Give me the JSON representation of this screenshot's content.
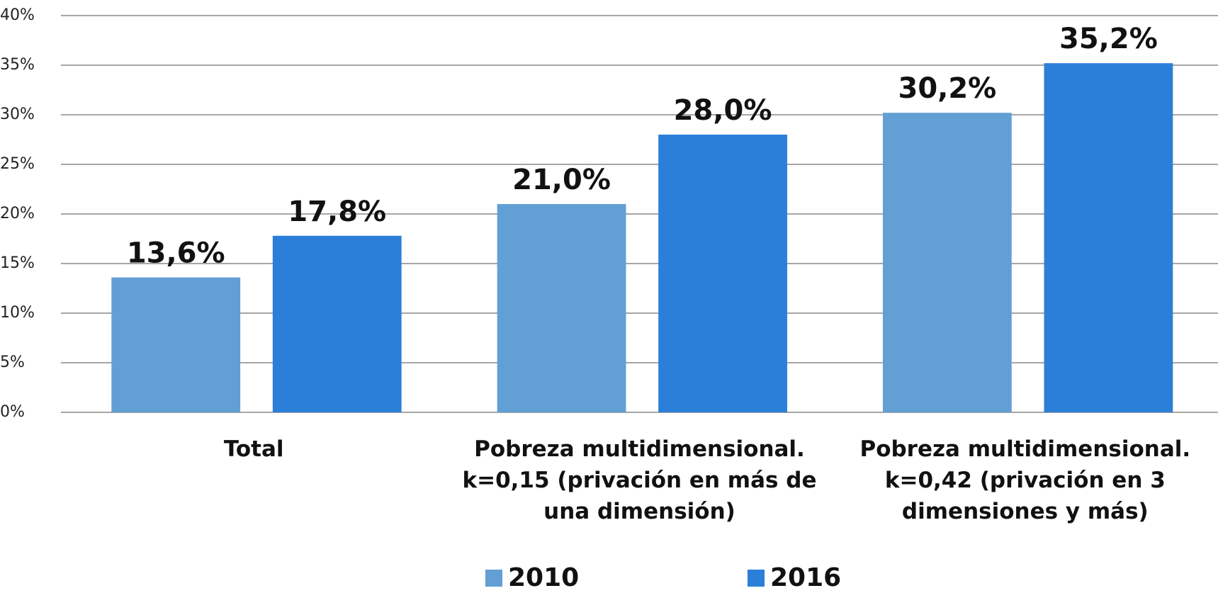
{
  "chart_data": {
    "type": "bar",
    "categories": [
      "Total",
      "Pobreza multidimensional. k=0,15 (privación en más de una dimensión)",
      "Pobreza multidimensional. k=0,42 (privación en 3 dimensiones y más)"
    ],
    "series": [
      {
        "name": "2010",
        "color": "#629fd4",
        "values": [
          13.6,
          21.0,
          30.2
        ],
        "value_labels": [
          "13,6%",
          "21,0%",
          "30,2%"
        ]
      },
      {
        "name": "2016",
        "color": "#2b7fd8",
        "values": [
          17.8,
          28.0,
          35.2
        ],
        "value_labels": [
          "17,8%",
          "28,0%",
          "35,2%"
        ]
      }
    ],
    "ylim": [
      0,
      40
    ],
    "yticks": [
      {
        "value": 0,
        "label": "0%"
      },
      {
        "value": 5,
        "label": "5%"
      },
      {
        "value": 10,
        "label": "10%"
      },
      {
        "value": 15,
        "label": "15%"
      },
      {
        "value": 20,
        "label": "20%"
      },
      {
        "value": 25,
        "label": "25%"
      },
      {
        "value": 30,
        "label": "30%"
      },
      {
        "value": 35,
        "label": "35%"
      },
      {
        "value": 40,
        "label": "40%"
      }
    ],
    "grid": true,
    "legend": "bottom"
  }
}
